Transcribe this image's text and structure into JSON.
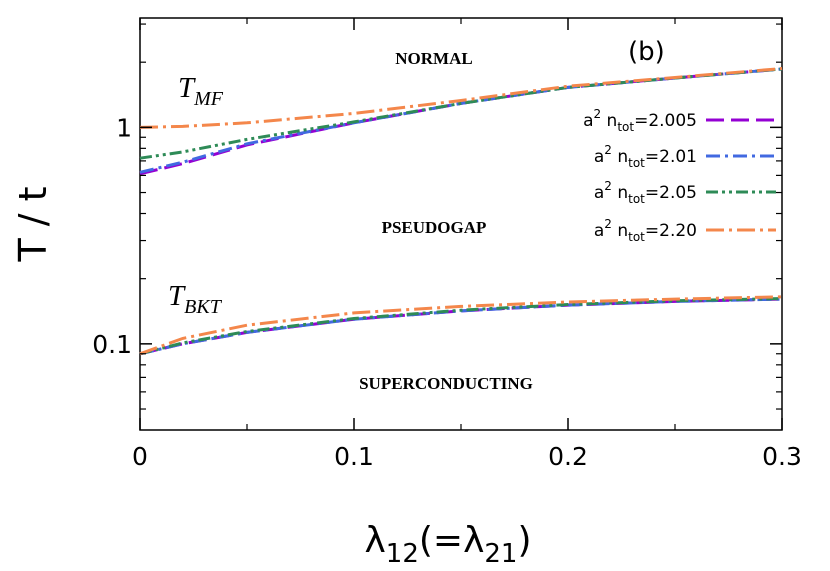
{
  "chart_data": {
    "type": "line",
    "panel_label": "(b)",
    "xlabel": "λ12(=λ21)",
    "xlabel_main": "λ",
    "xlabel_sub1": "12",
    "xlabel_mid": "(=λ",
    "xlabel_sub2": "21",
    "xlabel_end": ")",
    "ylabel": "T / t",
    "yscale": "log",
    "xlim": [
      0,
      0.3
    ],
    "ylim": [
      0.04,
      3.2
    ],
    "x_ticks": [
      0,
      0.1,
      0.2,
      0.3
    ],
    "x_tick_labels": [
      "0",
      "0.1",
      "0.2",
      "0.3"
    ],
    "y_ticks": [
      0.1,
      1
    ],
    "y_tick_labels": [
      "0.1",
      "1"
    ],
    "region_labels": {
      "normal": "NORMAL",
      "pseudogap": "PSEUDOGAP",
      "superconducting": "SUPERCONDUCTING"
    },
    "curve_labels": {
      "mf_main": "T",
      "mf_sub": "MF",
      "bkt_main": "T",
      "bkt_sub": "BKT"
    },
    "legend": [
      {
        "prefix": "a",
        "sup": "2",
        "mid": " n",
        "sub": "tot",
        "value": "=2.005",
        "color": "#9400d3",
        "dash": "18,7"
      },
      {
        "prefix": "a",
        "sup": "2",
        "mid": " n",
        "sub": "tot",
        "value": "=2.01",
        "color": "#4169e1",
        "dash": "14,5,3,5"
      },
      {
        "prefix": "a",
        "sup": "2",
        "mid": " n",
        "sub": "tot",
        "value": "=2.05",
        "color": "#2e8b57",
        "dash": "12,4,3,4,3,4"
      },
      {
        "prefix": "a",
        "sup": "2",
        "mid": " n",
        "sub": "tot",
        "value": "=2.20",
        "color": "#f4874b",
        "dash": "18,5,3,5"
      }
    ],
    "series": [
      {
        "name": "T_MF a2ntot=2.005",
        "color": "#9400d3",
        "dash": "18,7",
        "x": [
          0,
          0.02,
          0.05,
          0.1,
          0.15,
          0.2,
          0.25,
          0.3
        ],
        "y": [
          0.61,
          0.68,
          0.83,
          1.05,
          1.29,
          1.53,
          1.69,
          1.86
        ]
      },
      {
        "name": "T_MF a2ntot=2.01",
        "color": "#4169e1",
        "dash": "14,5,3,5",
        "x": [
          0,
          0.02,
          0.05,
          0.1,
          0.15,
          0.2,
          0.25,
          0.3
        ],
        "y": [
          0.62,
          0.69,
          0.84,
          1.05,
          1.29,
          1.53,
          1.69,
          1.86
        ]
      },
      {
        "name": "T_MF a2ntot=2.05",
        "color": "#2e8b57",
        "dash": "12,4,3,4,3,4",
        "x": [
          0,
          0.02,
          0.05,
          0.1,
          0.15,
          0.2,
          0.25,
          0.3
        ],
        "y": [
          0.72,
          0.77,
          0.88,
          1.06,
          1.29,
          1.53,
          1.69,
          1.86
        ]
      },
      {
        "name": "T_MF a2ntot=2.20",
        "color": "#f4874b",
        "dash": "18,5,3,5",
        "x": [
          0,
          0.02,
          0.05,
          0.1,
          0.15,
          0.2,
          0.25,
          0.3
        ],
        "y": [
          1.0,
          1.01,
          1.05,
          1.16,
          1.33,
          1.55,
          1.7,
          1.87
        ]
      },
      {
        "name": "T_BKT a2ntot=2.005",
        "color": "#9400d3",
        "dash": "18,7",
        "x": [
          0,
          0.02,
          0.05,
          0.1,
          0.15,
          0.2,
          0.25,
          0.3
        ],
        "y": [
          0.09,
          0.1,
          0.113,
          0.13,
          0.142,
          0.151,
          0.157,
          0.161
        ]
      },
      {
        "name": "T_BKT a2ntot=2.01",
        "color": "#4169e1",
        "dash": "14,5,3,5",
        "x": [
          0,
          0.02,
          0.05,
          0.1,
          0.15,
          0.2,
          0.25,
          0.3
        ],
        "y": [
          0.09,
          0.1,
          0.113,
          0.13,
          0.142,
          0.151,
          0.157,
          0.161
        ]
      },
      {
        "name": "T_BKT a2ntot=2.05",
        "color": "#2e8b57",
        "dash": "12,4,3,4,3,4",
        "x": [
          0,
          0.02,
          0.05,
          0.1,
          0.15,
          0.2,
          0.25,
          0.3
        ],
        "y": [
          0.09,
          0.101,
          0.114,
          0.131,
          0.143,
          0.152,
          0.158,
          0.162
        ]
      },
      {
        "name": "T_BKT a2ntot=2.20",
        "color": "#f4874b",
        "dash": "18,5,3,5",
        "x": [
          0,
          0.02,
          0.05,
          0.1,
          0.15,
          0.2,
          0.25,
          0.3
        ],
        "y": [
          0.09,
          0.106,
          0.122,
          0.139,
          0.149,
          0.156,
          0.161,
          0.165
        ]
      }
    ]
  }
}
